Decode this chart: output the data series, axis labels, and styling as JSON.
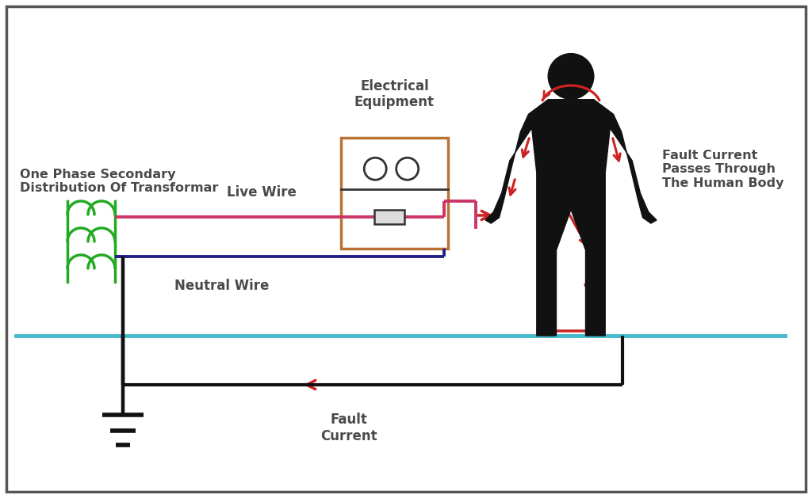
{
  "bg_color": "#ffffff",
  "text_color": "#4a4a4a",
  "live_wire_color": "#cc3366",
  "neutral_wire_color": "#22228a",
  "transformer_color": "#22aa22",
  "ground_color": "#111111",
  "equipment_box_color": "#b87333",
  "fault_arrow_color": "#cc2222",
  "ground_line_color": "#44bbcc",
  "human_color": "#111111",
  "labels": {
    "electrical_equipment": "Electrical\nEquipment",
    "one_phase": "One Phase Secondary\nDistribution Of Transformar",
    "live_wire": "Live Wire",
    "neutral_wire": "Neutral Wire",
    "fault_current": "Fault\nCurrent",
    "fault_current_body": "Fault Current\nPasses Through\nThe Human Body"
  }
}
